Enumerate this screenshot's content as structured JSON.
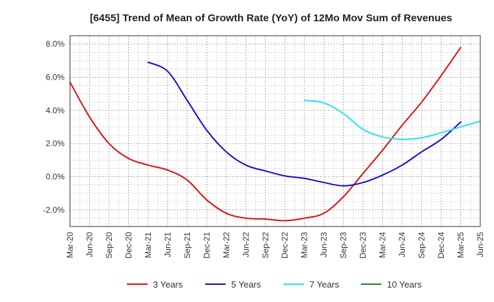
{
  "chart_data": {
    "type": "line",
    "title": "[6455]  Trend of Mean of Growth Rate (YoY) of 12Mo Mov Sum of Revenues",
    "xlabel": "",
    "ylabel": "",
    "ylim": [
      -3.0,
      8.5
    ],
    "y_ticks": [
      8.0,
      6.0,
      4.0,
      2.0,
      0.0,
      -2.0
    ],
    "y_tick_labels": [
      "8.0%",
      "6.0%",
      "4.0%",
      "2.0%",
      "0.0%",
      "-2.0%"
    ],
    "x_tick_labels": [
      "Mar-20",
      "Jun-20",
      "Sep-20",
      "Dec-20",
      "Mar-21",
      "Jun-21",
      "Sep-21",
      "Dec-21",
      "Mar-22",
      "Jun-22",
      "Sep-22",
      "Dec-22",
      "Mar-23",
      "Jun-23",
      "Sep-23",
      "Dec-23",
      "Mar-24",
      "Jun-24",
      "Sep-24",
      "Dec-24",
      "Mar-25",
      "Jun-25"
    ],
    "grid": true,
    "legend_position": "bottom",
    "series": [
      {
        "name": "3 Years",
        "color": "#dd1111",
        "start_index": 0,
        "values": [
          5.7,
          3.6,
          2.0,
          1.1,
          0.7,
          0.4,
          -0.2,
          -1.4,
          -2.2,
          -2.5,
          -2.55,
          -2.65,
          -2.5,
          -2.2,
          -1.2,
          0.2,
          1.6,
          3.1,
          4.5,
          6.1,
          7.8
        ]
      },
      {
        "name": "5 Years",
        "color": "#1111cc",
        "start_index": 4,
        "values": [
          6.9,
          6.35,
          4.6,
          2.8,
          1.5,
          0.7,
          0.35,
          0.05,
          -0.1,
          -0.35,
          -0.55,
          -0.35,
          0.1,
          0.7,
          1.5,
          2.25,
          3.3
        ]
      },
      {
        "name": "7 Years",
        "color": "#22e5ee",
        "start_index": 12,
        "values": [
          4.6,
          4.45,
          3.8,
          2.85,
          2.4,
          2.25,
          2.35,
          2.65,
          3.0,
          3.35
        ]
      },
      {
        "name": "10 Years",
        "color": "#228822",
        "start_index": 0,
        "values": []
      }
    ]
  }
}
